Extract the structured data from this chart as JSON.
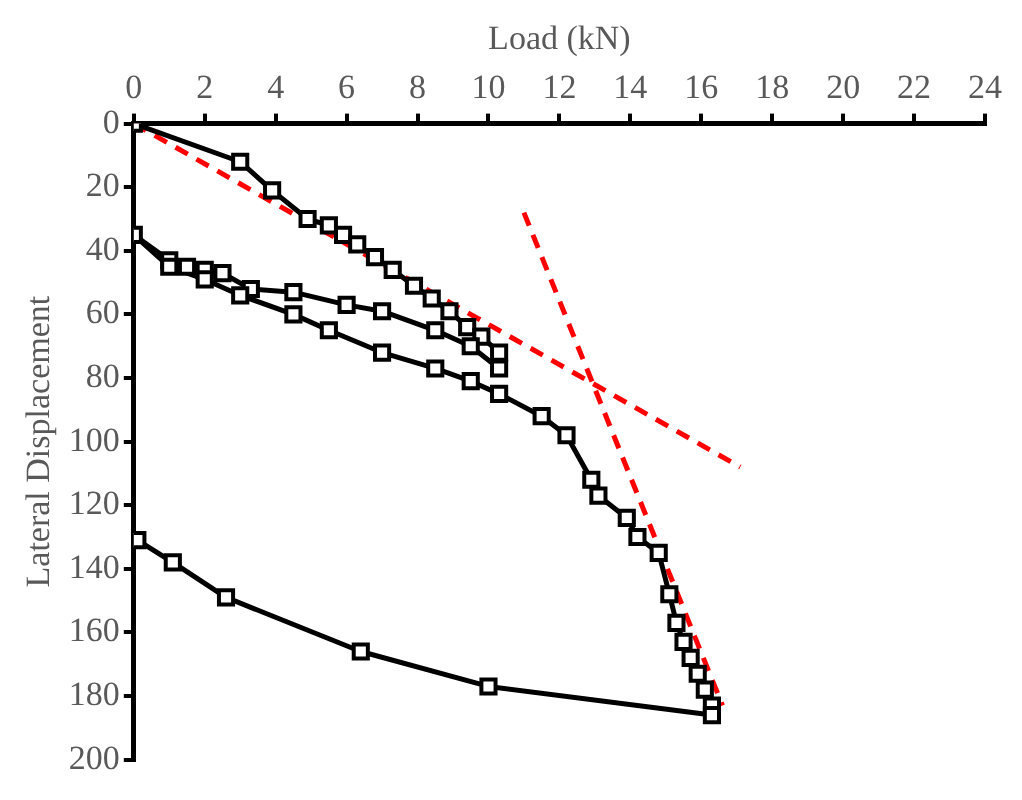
{
  "chart_data": {
    "type": "line",
    "xlabel": "Load (kN)",
    "ylabel": "Lateral Displacement",
    "xlim": [
      0,
      24
    ],
    "xticks": [
      0,
      2,
      4,
      6,
      8,
      10,
      12,
      14,
      16,
      18,
      20,
      22,
      24
    ],
    "ylim": [
      200,
      0
    ],
    "yticks": [
      0,
      20,
      40,
      60,
      80,
      100,
      120,
      140,
      160,
      180,
      200
    ],
    "grid": false,
    "legend": false,
    "marker": "square",
    "series": [
      {
        "color": "#000000",
        "line_style": "solid",
        "x": [
          0,
          3,
          3.9,
          4.9,
          5.5,
          5.9,
          6.3,
          6.8,
          7.3,
          7.9,
          8.4,
          8.9,
          9.4,
          9.8,
          10.3,
          10.3,
          9.5,
          8.5,
          7,
          6,
          4.5,
          3.3,
          2.5,
          2,
          1.5,
          1,
          0,
          1,
          2,
          3,
          4.5,
          5.5,
          7,
          8.5,
          9.5,
          10.3,
          11.5,
          12.2,
          12.9,
          13.1,
          13.9,
          14.2,
          14.8,
          15.1,
          15.3,
          15.5,
          15.7,
          15.9,
          16.1,
          16.3,
          16.3,
          10,
          6.4,
          2.6,
          1.1,
          0.1
        ],
        "values": [
          0,
          12,
          21,
          30,
          32,
          35,
          38,
          42,
          46,
          51,
          55,
          59,
          64,
          67,
          72,
          77,
          70,
          65,
          59,
          57,
          53,
          52,
          47,
          46,
          45,
          43,
          35,
          45,
          49,
          54,
          60,
          65,
          72,
          77,
          81,
          85,
          92,
          98,
          112,
          117,
          124,
          130,
          135,
          148,
          157,
          163,
          168,
          173,
          178,
          183,
          186,
          177,
          166,
          149,
          138,
          131
        ]
      },
      {
        "type": "line",
        "color": "#ff0000",
        "line_style": "dashed",
        "marker": "none",
        "x": [
          0,
          17.1
        ],
        "values": [
          0,
          108
        ]
      },
      {
        "type": "line",
        "color": "#ff0000",
        "line_style": "dashed",
        "marker": "none",
        "x": [
          11,
          16.6
        ],
        "values": [
          28,
          183
        ]
      }
    ]
  }
}
